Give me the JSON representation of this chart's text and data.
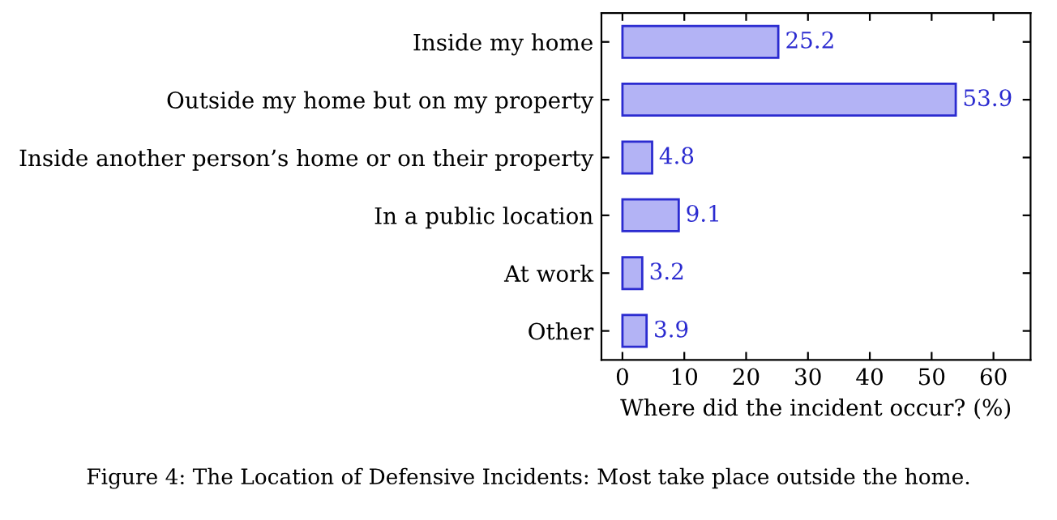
{
  "chart_data": {
    "type": "bar",
    "orientation": "horizontal",
    "xlabel": "Where did the incident occur? (%)",
    "categories": [
      "Inside my home",
      "Outside my home but on my property",
      "Inside another person’s home or on their property",
      "In a public location",
      "At work",
      "Other"
    ],
    "values": [
      25.2,
      53.9,
      4.8,
      9.1,
      3.2,
      3.9
    ],
    "color": "#b3b3f5",
    "data_labels": true,
    "xlim": [
      -3.4,
      66
    ],
    "xticks": [
      0,
      10,
      20,
      30,
      40,
      50,
      60
    ],
    "grid": false,
    "annotations": [
      "Figure 4: The Location of Defensive Incidents: Most take place outside the home."
    ]
  }
}
